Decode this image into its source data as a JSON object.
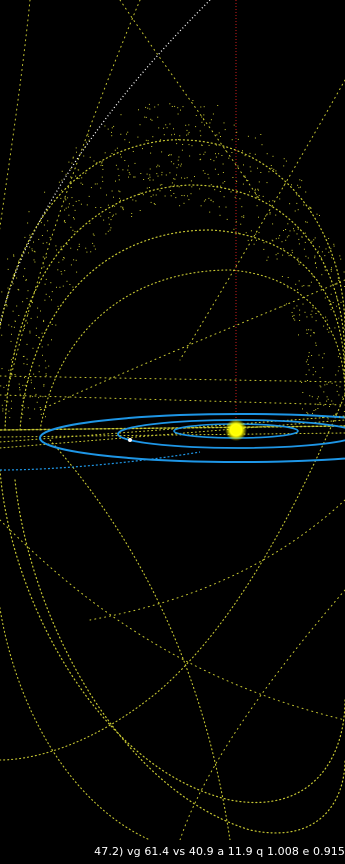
{
  "status_bar": {
    "text": "47.2) vg 61.4 vs 40.9 a 11.9 q 1.008 e 0.915"
  },
  "colors": {
    "background": "#000000",
    "meteoroid_stream": "#c8c832",
    "planet_orbit": "#1e96e6",
    "sun": "#ffff00",
    "axis_line": "#c81e1e",
    "comet_orbit": "#ffffff"
  }
}
